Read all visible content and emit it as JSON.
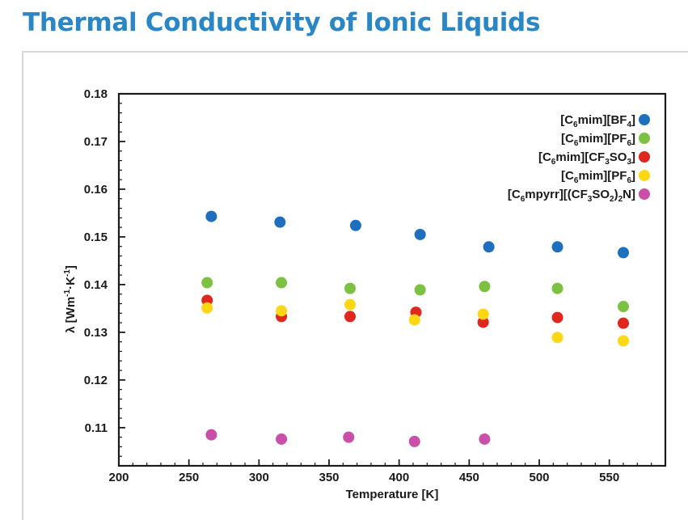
{
  "page": {
    "title": "Thermal Conductivity of Ionic Liquids"
  },
  "chart_data": {
    "type": "scatter",
    "title": "",
    "xlabel": "Temperature [K]",
    "ylabel_parts": {
      "lambda": "λ",
      "open": "[Wm",
      "exp1": "-1",
      "dot": "·K",
      "exp2": "-1",
      "close": "]"
    },
    "xlim": [
      200,
      590
    ],
    "ylim": [
      0.102,
      0.18
    ],
    "x_ticks": [
      200,
      250,
      300,
      350,
      400,
      450,
      500,
      550
    ],
    "x_tick_labels": [
      "200",
      "250",
      "300",
      "350",
      "400",
      "450",
      "500",
      "550"
    ],
    "y_ticks": [
      0.11,
      0.12,
      0.13,
      0.14,
      0.15,
      0.16,
      0.17,
      0.18
    ],
    "y_tick_labels": [
      "0.11",
      "0.12",
      "0.13",
      "0.14",
      "0.15",
      "0.16",
      "0.17",
      "0.18"
    ],
    "grid": false,
    "legend_position": "top-right",
    "series": [
      {
        "name": "[C6mim][BF4]",
        "label_parts": [
          [
            "[C",
            ""
          ],
          [
            "6",
            "sub"
          ],
          [
            "mim][BF",
            ""
          ],
          [
            "4",
            "sub"
          ],
          [
            "]",
            ""
          ]
        ],
        "color": "#1f6fbf",
        "x": [
          266,
          315,
          369,
          415,
          464,
          513,
          560
        ],
        "y": [
          0.1543,
          0.1531,
          0.1524,
          0.1505,
          0.1479,
          0.1479,
          0.1467
        ]
      },
      {
        "name": "[C6mim][PF6]",
        "label_parts": [
          [
            "[C",
            ""
          ],
          [
            "6",
            "sub"
          ],
          [
            "mim][PF",
            ""
          ],
          [
            "6",
            "sub"
          ],
          [
            "]",
            ""
          ]
        ],
        "color": "#7dc142",
        "x": [
          263,
          316,
          365,
          415,
          461,
          513,
          560
        ],
        "y": [
          0.1404,
          0.1404,
          0.1392,
          0.1389,
          0.1396,
          0.1392,
          0.1354
        ]
      },
      {
        "name": "[C6mim][CF3SO3]",
        "label_parts": [
          [
            "[C",
            ""
          ],
          [
            "6",
            "sub"
          ],
          [
            "mim][CF",
            ""
          ],
          [
            "3",
            "sub"
          ],
          [
            "SO",
            ""
          ],
          [
            "3",
            "sub"
          ],
          [
            "]",
            ""
          ]
        ],
        "color": "#e0261d",
        "x": [
          263,
          316,
          365,
          412,
          460,
          513,
          560
        ],
        "y": [
          0.1367,
          0.1333,
          0.1333,
          0.1342,
          0.1321,
          0.1331,
          0.1319
        ]
      },
      {
        "name": "[C6mim][PF6]",
        "label_parts": [
          [
            "[C",
            ""
          ],
          [
            "6",
            "sub"
          ],
          [
            "mim][PF",
            ""
          ],
          [
            "6",
            "sub"
          ],
          [
            "]",
            ""
          ]
        ],
        "color": "#fed714",
        "x": [
          263,
          316,
          365,
          411,
          460,
          513,
          560
        ],
        "y": [
          0.1351,
          0.1345,
          0.1358,
          0.1326,
          0.1338,
          0.1289,
          0.1282
        ]
      },
      {
        "name": "[C6mpyrr][(CF3SO2)2N]",
        "label_parts": [
          [
            "[C",
            ""
          ],
          [
            "6",
            "sub"
          ],
          [
            "mpyrr][(CF",
            ""
          ],
          [
            "3",
            "sub"
          ],
          [
            "SO",
            ""
          ],
          [
            "2",
            "sub"
          ],
          [
            ")",
            ""
          ],
          [
            "2",
            "sub"
          ],
          [
            "N]",
            ""
          ]
        ],
        "color": "#c94fa8",
        "x": [
          266,
          316,
          364,
          411,
          461
        ],
        "y": [
          0.1085,
          0.1076,
          0.108,
          0.1071,
          0.1076
        ]
      }
    ]
  }
}
